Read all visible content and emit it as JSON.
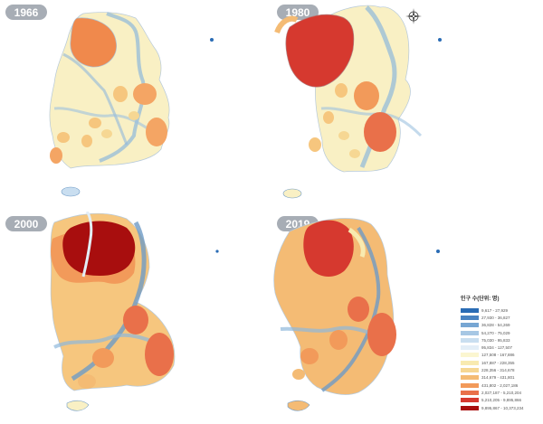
{
  "panels": [
    {
      "year": "1966"
    },
    {
      "year": "1980"
    },
    {
      "year": "2000"
    },
    {
      "year": "2019"
    }
  ],
  "compass_icon": "north-arrow-compass-icon",
  "legend": {
    "title": "인구 수(단위: 명)",
    "items": [
      {
        "label": "9,617 - 27,929",
        "color": "#2a6cb5"
      },
      {
        "label": "27,930 - 36,827",
        "color": "#4a84c2"
      },
      {
        "label": "36,828 - 54,269",
        "color": "#77a6d3"
      },
      {
        "label": "54,270 - 75,029",
        "color": "#a6c7e4"
      },
      {
        "label": "75,030 - 95,833",
        "color": "#c9def0"
      },
      {
        "label": "95,834 - 127,507",
        "color": "#e3eef7"
      },
      {
        "label": "127,508 - 167,886",
        "color": "#fbf6d0"
      },
      {
        "label": "167,887 - 228,355",
        "color": "#f8eab0"
      },
      {
        "label": "228,356 - 314,678",
        "color": "#f6d793"
      },
      {
        "label": "314,679 - 431,801",
        "color": "#f4bb74"
      },
      {
        "label": "431,802 - 2,027,186",
        "color": "#f29a5a"
      },
      {
        "label": "2,027,187 - 5,210,204",
        "color": "#e9704a"
      },
      {
        "label": "5,210,205 - 9,895,866",
        "color": "#d6392f"
      },
      {
        "label": "9,895,867 - 10,373,234",
        "color": "#a80e0e"
      }
    ]
  }
}
